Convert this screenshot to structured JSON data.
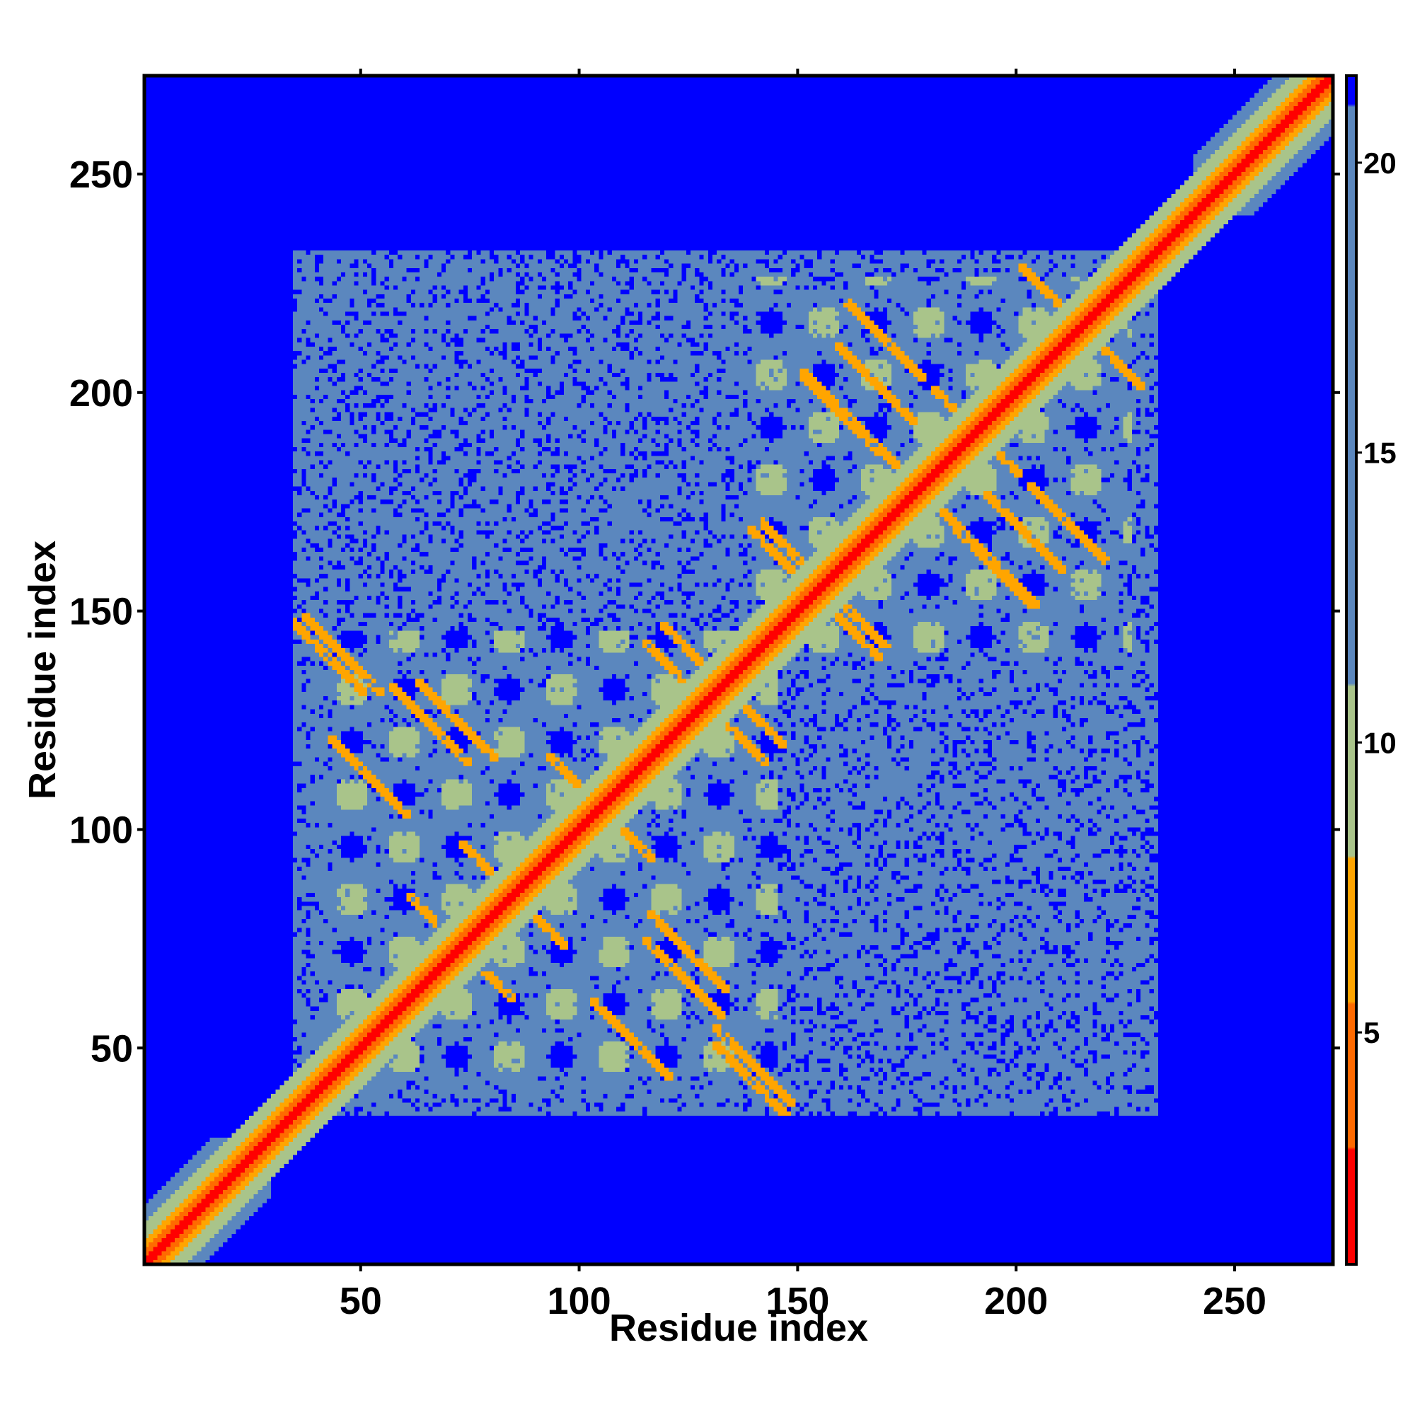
{
  "chart_data": {
    "type": "heatmap",
    "title": "",
    "xlabel": "Residue index",
    "ylabel": "Residue index",
    "n_residues": 272,
    "xlim": [
      1,
      272
    ],
    "ylim": [
      1,
      272
    ],
    "x_ticks": [
      50,
      100,
      150,
      200,
      250
    ],
    "y_ticks": [
      50,
      100,
      150,
      200,
      250
    ],
    "colorbar": {
      "ticks": [
        5,
        10,
        15,
        20
      ],
      "range": [
        1,
        21.5
      ],
      "colors": [
        {
          "upper": 3,
          "color": "#ff0000"
        },
        {
          "upper": 5.5,
          "color": "#ff6a00"
        },
        {
          "upper": 8,
          "color": "#ffa500"
        },
        {
          "upper": 11,
          "color": "#a9c48a"
        },
        {
          "upper": 21,
          "color": "#5b87be"
        },
        {
          "upper": 99,
          "color": "#0000ff"
        }
      ]
    },
    "domains": [
      {
        "start": 40,
        "end": 145
      },
      {
        "start": 140,
        "end": 226
      }
    ],
    "helix_cross_contacts": [
      {
        "x": 46,
        "y": 140
      },
      {
        "x": 72,
        "y": 125
      },
      {
        "x": 52,
        "y": 112
      },
      {
        "x": 82,
        "y": 88
      },
      {
        "x": 70,
        "y": 76
      },
      {
        "x": 124,
        "y": 66
      },
      {
        "x": 112,
        "y": 52
      },
      {
        "x": 140,
        "y": 42
      },
      {
        "x": 102,
        "y": 108
      },
      {
        "x": 128,
        "y": 138
      },
      {
        "x": 134,
        "y": 124
      },
      {
        "x": 160,
        "y": 196
      },
      {
        "x": 170,
        "y": 212
      },
      {
        "x": 190,
        "y": 192
      },
      {
        "x": 178,
        "y": 178
      },
      {
        "x": 202,
        "y": 168
      },
      {
        "x": 212,
        "y": 218
      },
      {
        "x": 150,
        "y": 162
      },
      {
        "x": 160,
        "y": 148
      },
      {
        "x": 195,
        "y": 160
      },
      {
        "x": 220,
        "y": 210
      }
    ]
  }
}
